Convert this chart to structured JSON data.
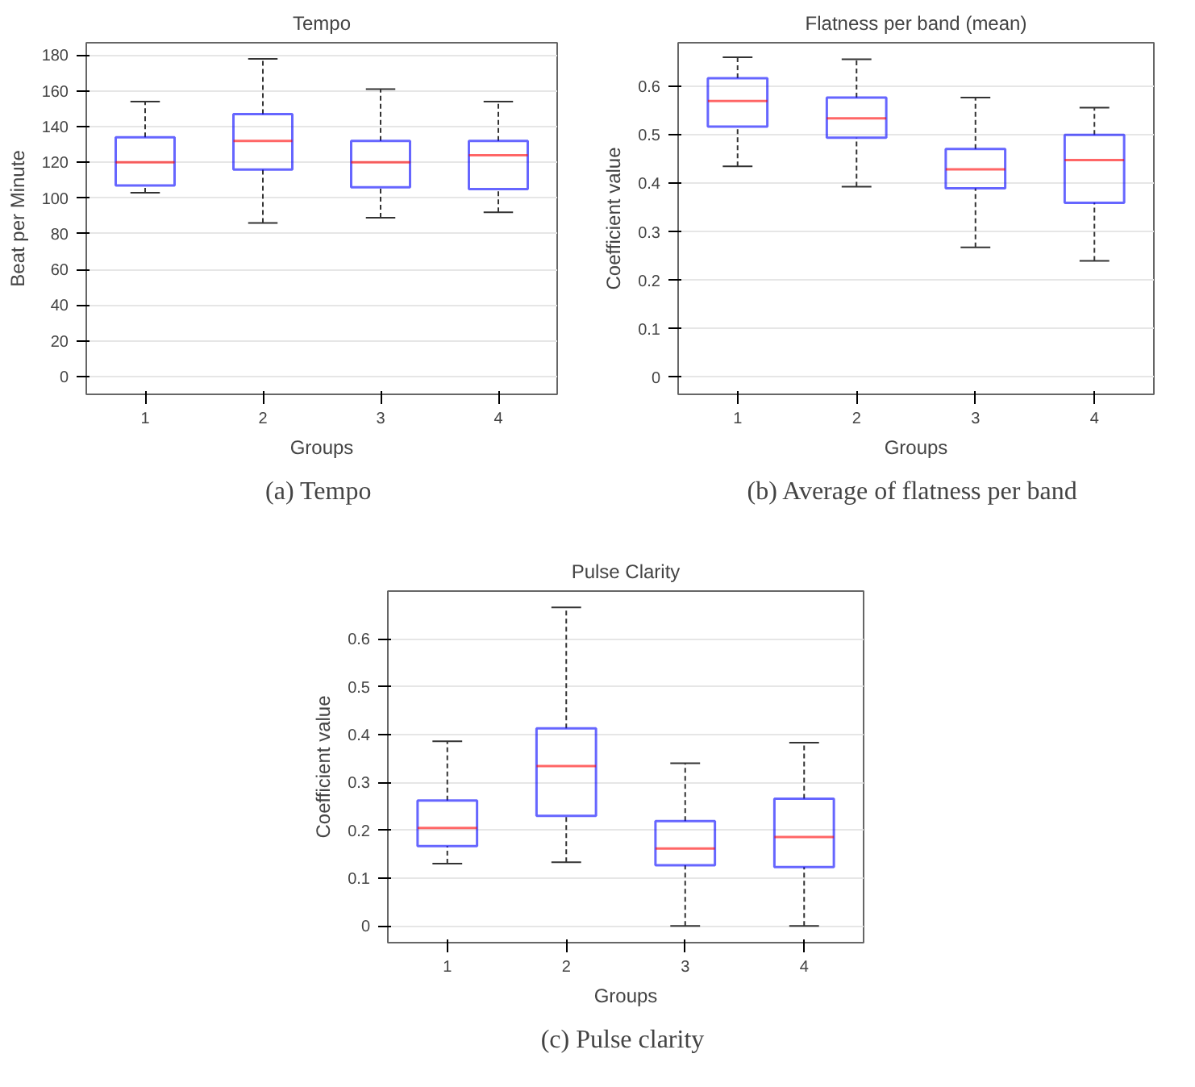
{
  "chart_data": [
    {
      "type": "box",
      "title": "Tempo",
      "xlabel": "Groups",
      "ylabel": "Beat per Minute",
      "categories": [
        "1",
        "2",
        "3",
        "4"
      ],
      "ylim": [
        -10,
        187
      ],
      "yticks": [
        0,
        20,
        40,
        60,
        80,
        100,
        120,
        140,
        160,
        180
      ],
      "grid": "y",
      "annotations": [
        "(a)  Tempo"
      ],
      "series": [
        {
          "color": "#0000ff",
          "boxes": [
            {
              "low": 103,
              "q1": 107,
              "median": 120,
              "q3": 134,
              "high": 154
            },
            {
              "low": 86,
              "q1": 116,
              "median": 132,
              "q3": 147,
              "high": 178
            },
            {
              "low": 89,
              "q1": 106,
              "median": 120,
              "q3": 132,
              "high": 161
            },
            {
              "low": 92,
              "q1": 105,
              "median": 124,
              "q3": 132,
              "high": 154
            }
          ]
        }
      ]
    },
    {
      "type": "box",
      "title": "Flatness per band (mean)",
      "xlabel": "Groups",
      "ylabel": "Coefficient value",
      "categories": [
        "1",
        "2",
        "3",
        "4"
      ],
      "ylim": [
        -0.035,
        0.69
      ],
      "yticks": [
        0,
        0.1,
        0.2,
        0.3,
        0.4,
        0.5,
        0.6
      ],
      "grid": "y",
      "annotations": [
        "(b)  Average of flatness per band"
      ],
      "series": [
        {
          "color": "#0000ff",
          "boxes": [
            {
              "low": 0.435,
              "q1": 0.517,
              "median": 0.57,
              "q3": 0.617,
              "high": 0.66
            },
            {
              "low": 0.393,
              "q1": 0.494,
              "median": 0.534,
              "q3": 0.577,
              "high": 0.656
            },
            {
              "low": 0.268,
              "q1": 0.39,
              "median": 0.429,
              "q3": 0.471,
              "high": 0.577
            },
            {
              "low": 0.24,
              "q1": 0.36,
              "median": 0.448,
              "q3": 0.5,
              "high": 0.556
            }
          ]
        }
      ]
    },
    {
      "type": "box",
      "title": "Pulse Clarity",
      "xlabel": "Groups",
      "ylabel": "Coefficient value",
      "categories": [
        "1",
        "2",
        "3",
        "4"
      ],
      "ylim": [
        -0.035,
        0.7
      ],
      "yticks": [
        0,
        0.1,
        0.2,
        0.3,
        0.4,
        0.5,
        0.6
      ],
      "grid": "y",
      "annotations": [
        "(c)  Pulse clarity"
      ],
      "series": [
        {
          "color": "#0000ff",
          "boxes": [
            {
              "low": 0.13,
              "q1": 0.167,
              "median": 0.205,
              "q3": 0.262,
              "high": 0.386
            },
            {
              "low": 0.133,
              "q1": 0.23,
              "median": 0.334,
              "q3": 0.413,
              "high": 0.666
            },
            {
              "low": 0,
              "q1": 0.127,
              "median": 0.162,
              "q3": 0.219,
              "high": 0.34
            },
            {
              "low": 0,
              "q1": 0.123,
              "median": 0.186,
              "q3": 0.266,
              "high": 0.383
            }
          ]
        }
      ]
    }
  ]
}
